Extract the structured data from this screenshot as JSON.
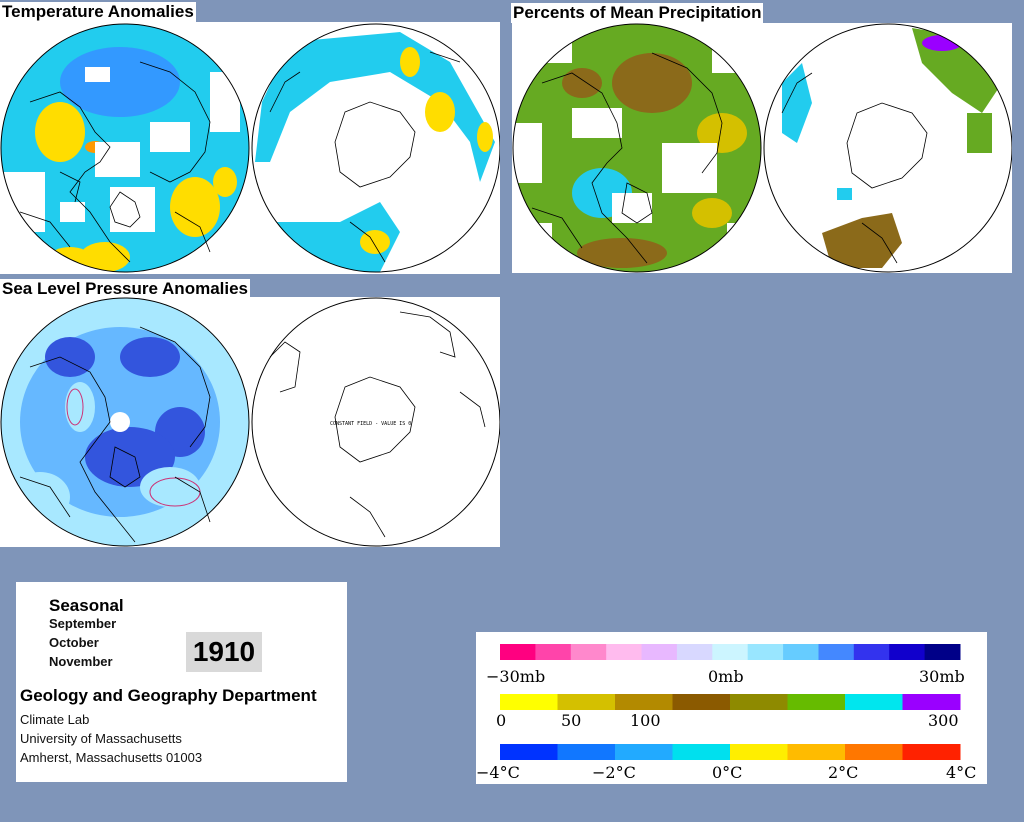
{
  "panels": {
    "temperature": {
      "title": "Temperature Anomalies"
    },
    "precipitation": {
      "title": "Percents of Mean Precipitation"
    },
    "pressure": {
      "title": "Sea Level Pressure Anomalies",
      "south_note": "CONSTANT FIELD - VALUE IS 0"
    }
  },
  "info": {
    "season": "Seasonal",
    "months": [
      "September",
      "October",
      "November"
    ],
    "year": "1910",
    "department": "Geology and Geography Department",
    "address": [
      "Climate Lab",
      "University of Massachusetts",
      "Amherst, Massachusetts 01003"
    ]
  },
  "scales": {
    "pressure": {
      "labels": [
        "−30mb",
        "0mb",
        "30mb"
      ],
      "colors": [
        "#ff0080",
        "#ff44aa",
        "#ff88cc",
        "#ffbbee",
        "#e8b8ff",
        "#d8d8ff",
        "#ccf5ff",
        "#99e6ff",
        "#66ccff",
        "#4488ff",
        "#3333ee",
        "#1100cc",
        "#000088"
      ]
    },
    "precipitation": {
      "labels": [
        "0",
        "50",
        "100",
        "300"
      ],
      "colors": [
        "#ffff00",
        "#d4c000",
        "#b38a00",
        "#8b5a00",
        "#8e8a00",
        "#66bb00",
        "#00e6ee",
        "#9a00ff"
      ]
    },
    "temperature": {
      "labels": [
        "−4°C",
        "−2°C",
        "0°C",
        "2°C",
        "4°C"
      ],
      "colors": [
        "#0033ff",
        "#1177ff",
        "#22aaff",
        "#00e0ee",
        "#ffee00",
        "#ffbb00",
        "#ff7700",
        "#ff2200"
      ]
    }
  },
  "colors": {
    "background": "#7f95b9",
    "temp_cool": "#22ccee",
    "temp_cold": "#3399ff",
    "temp_warm": "#ffdd00",
    "temp_hot": "#ff9900",
    "precip_green": "#66aa22",
    "precip_brown": "#8b6a1a",
    "pressure_light": "#a8e8ff",
    "pressure_mid": "#66b8ff",
    "pressure_dark": "#3355dd"
  }
}
